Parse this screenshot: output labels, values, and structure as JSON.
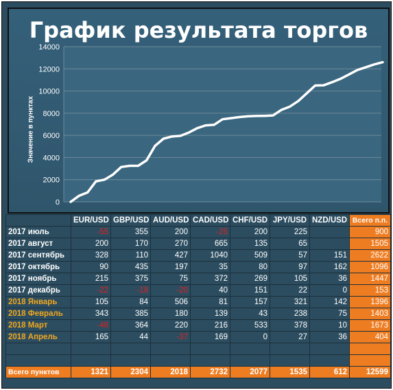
{
  "chart_data": {
    "type": "line",
    "title": "График результата торгов",
    "xlabel": "",
    "ylabel": "Значение в пунктах",
    "ylim": [
      0,
      14000
    ],
    "yticks": [
      "0",
      "2000",
      "4000",
      "6000",
      "8000",
      "10000",
      "12000",
      "14000"
    ],
    "grid": true,
    "series": [
      {
        "values": [
          0,
          550,
          850,
          1850,
          2000,
          2450,
          3150,
          3250,
          3250,
          3750,
          5050,
          5700,
          5900,
          5950,
          6250,
          6650,
          6900,
          6950,
          7450,
          7550,
          7650,
          7720,
          7750,
          7760,
          7800,
          8300,
          8600,
          9100,
          9800,
          10500,
          10520,
          10800,
          11100,
          11500,
          11900,
          12150,
          12400,
          12599
        ]
      }
    ]
  },
  "table": {
    "columns": [
      "EUR/USD",
      "GBP/USD",
      "AUD/USD",
      "CAD/USD",
      "CHF/USD",
      "JPY/USD",
      "NZD/USD",
      "Всего п.п."
    ],
    "rows": [
      {
        "label": "2017 июль",
        "year2018": false,
        "cells": [
          "-55",
          "355",
          "200",
          "-25",
          "200",
          "225",
          "",
          "900"
        ]
      },
      {
        "label": "2017 август",
        "year2018": false,
        "cells": [
          "200",
          "170",
          "270",
          "665",
          "135",
          "65",
          "",
          "1505"
        ]
      },
      {
        "label": "2017 сентябрь",
        "year2018": false,
        "cells": [
          "328",
          "110",
          "427",
          "1040",
          "509",
          "57",
          "151",
          "2622"
        ]
      },
      {
        "label": "2017 октябрь",
        "year2018": false,
        "cells": [
          "90",
          "435",
          "197",
          "35",
          "80",
          "97",
          "162",
          "1096"
        ]
      },
      {
        "label": "2017 ноябрь",
        "year2018": false,
        "cells": [
          "215",
          "375",
          "75",
          "372",
          "269",
          "105",
          "36",
          "1447"
        ]
      },
      {
        "label": "2017 декабрь",
        "year2018": false,
        "cells": [
          "-22",
          "-18",
          "-20",
          "40",
          "151",
          "22",
          "0",
          "153"
        ]
      },
      {
        "label": "2018 Январь",
        "year2018": true,
        "cells": [
          "105",
          "84",
          "506",
          "81",
          "157",
          "321",
          "142",
          "1396"
        ]
      },
      {
        "label": "2018 Февраль",
        "year2018": true,
        "cells": [
          "343",
          "385",
          "180",
          "139",
          "43",
          "238",
          "75",
          "1403"
        ]
      },
      {
        "label": "2018 Март",
        "year2018": true,
        "cells": [
          "-48",
          "364",
          "220",
          "216",
          "533",
          "378",
          "10",
          "1673"
        ]
      },
      {
        "label": "2018 Апрель",
        "year2018": true,
        "cells": [
          "165",
          "44",
          "-37",
          "169",
          "0",
          "27",
          "36",
          "404"
        ]
      }
    ],
    "empty_rows": 2,
    "total": {
      "label": "Всего пунктов",
      "cells": [
        "1321",
        "2304",
        "2018",
        "2732",
        "2077",
        "1535",
        "612",
        "12599"
      ]
    }
  },
  "colors": {
    "background": "#2c4d60",
    "line": "#ffffff",
    "grid": "#6e8a99",
    "total": "#ee7d22",
    "negative": "#e02020",
    "month2018": "#f2a81e"
  }
}
